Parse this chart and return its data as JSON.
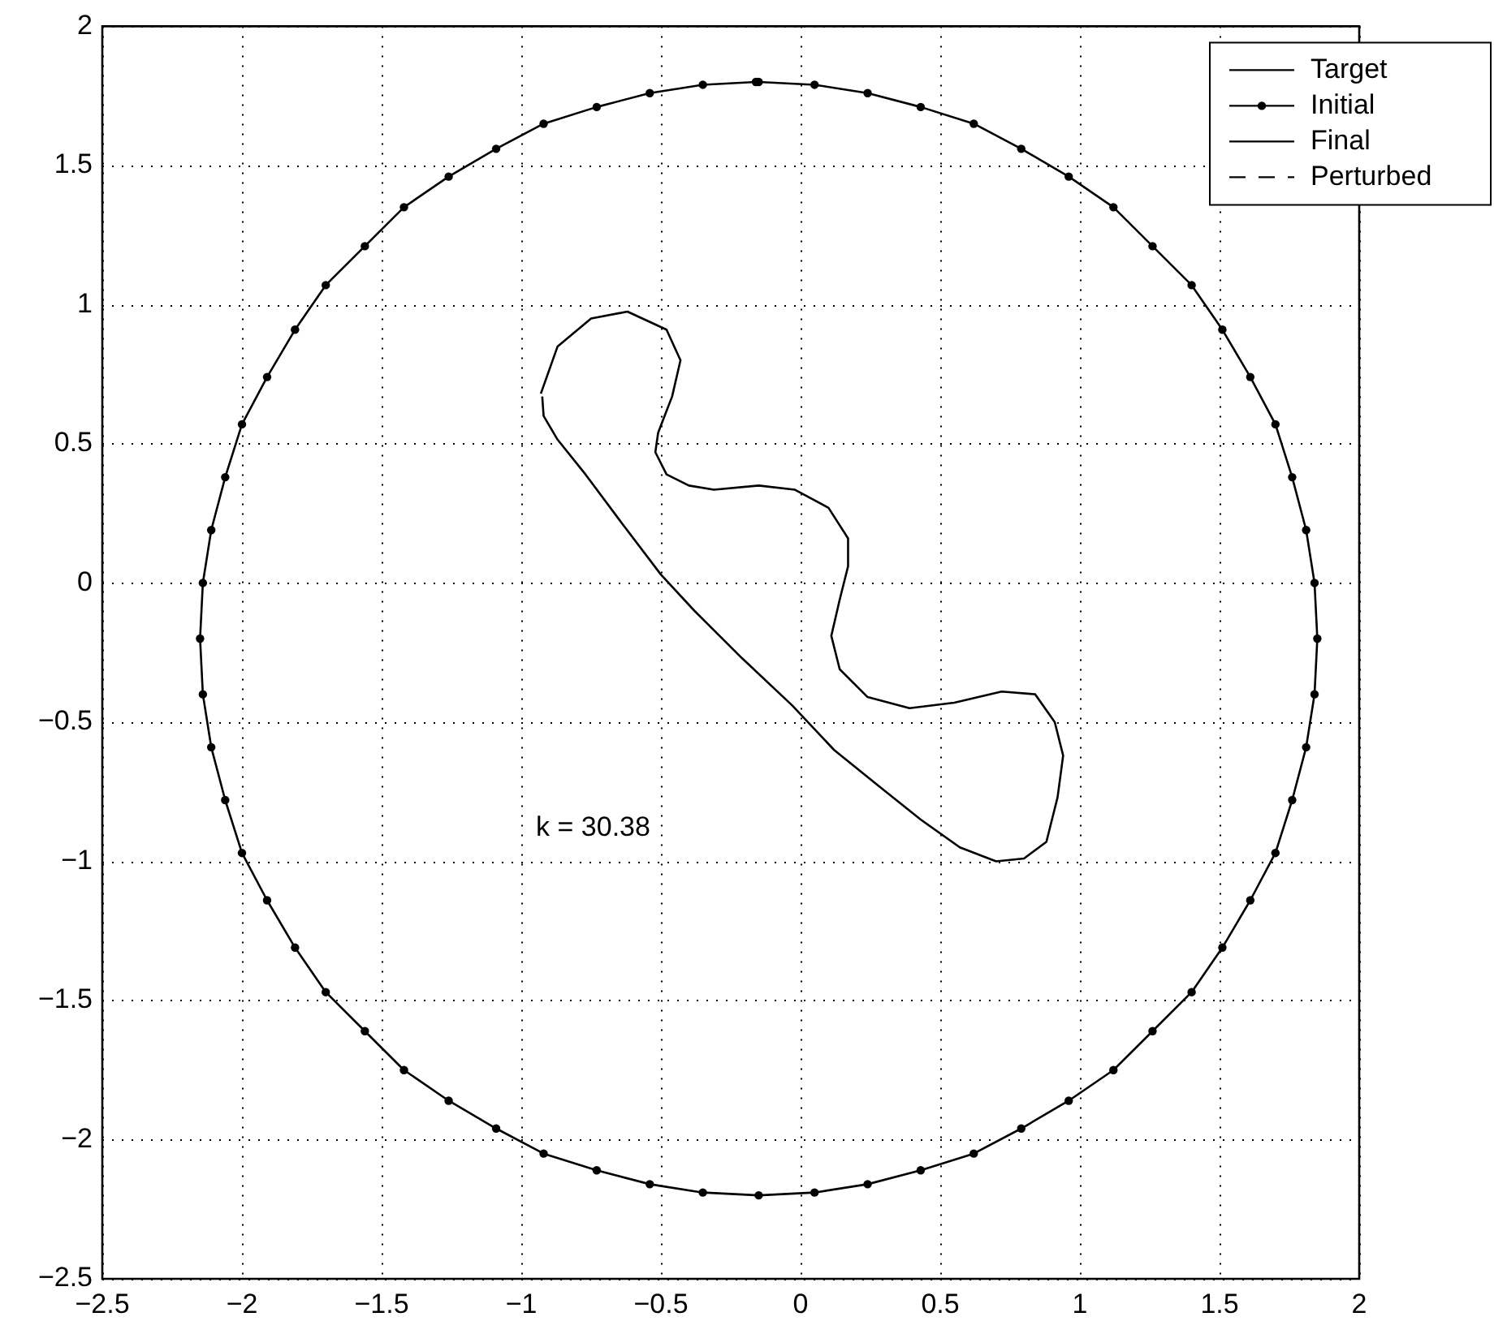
{
  "chart_data": {
    "type": "line",
    "xlim": [
      -2.5,
      2
    ],
    "ylim": [
      -2.5,
      2
    ],
    "xticks": [
      {
        "value": -2.5,
        "label": "−2.5"
      },
      {
        "value": -2,
        "label": "−2"
      },
      {
        "value": -1.5,
        "label": "−1.5"
      },
      {
        "value": -1,
        "label": "−1"
      },
      {
        "value": -0.5,
        "label": "−0.5"
      },
      0,
      0.5,
      1,
      1.5,
      2
    ],
    "yticks": [
      {
        "value": -2.5,
        "label": "−2.5"
      },
      {
        "value": -2,
        "label": "−2"
      },
      {
        "value": -1.5,
        "label": "−1.5"
      },
      {
        "value": -1,
        "label": "−1"
      },
      {
        "value": -0.5,
        "label": "−0.5"
      },
      0,
      0.5,
      1,
      1.5,
      2
    ],
    "grid": true,
    "legend": "top right",
    "annotations": [
      "k = 30.38"
    ],
    "series": [
      {
        "name": "Target",
        "color": "#000000",
        "line_style": "solid"
      },
      {
        "name": "Initial",
        "color": "#000000",
        "marker": "circle",
        "line_style": "solid",
        "x": [
          -0.15,
          0.05,
          0.24,
          0.43,
          0.62,
          0.79,
          0.96,
          1.12,
          1.26,
          1.4,
          1.51,
          1.61,
          1.7,
          1.76,
          1.81,
          1.84,
          1.85,
          1.84,
          1.81,
          1.76,
          1.7,
          1.61,
          1.51,
          1.4,
          1.26,
          1.12,
          0.96,
          0.79,
          0.62,
          0.43,
          0.24,
          0.05,
          -0.15,
          -0.35,
          -0.54,
          -0.73,
          -0.92,
          -1.09,
          -1.26,
          -1.42,
          -1.56,
          -1.7,
          -1.81,
          -1.91,
          -2.0,
          -2.06,
          -2.11,
          -2.14,
          -2.15,
          -2.14,
          -2.11,
          -2.06,
          -2.0,
          -1.91,
          -1.81,
          -1.7,
          -1.56,
          -1.42,
          -1.26,
          -1.09,
          -0.92,
          -0.73,
          -0.54,
          -0.35,
          -0.16
        ],
        "values": [
          1.8,
          1.79,
          1.76,
          1.71,
          1.65,
          1.56,
          1.46,
          1.35,
          1.21,
          1.07,
          0.91,
          0.74,
          0.57,
          0.38,
          0.19,
          0.0,
          -0.2,
          -0.4,
          -0.59,
          -0.78,
          -0.97,
          -1.14,
          -1.31,
          -1.47,
          -1.61,
          -1.75,
          -1.86,
          -1.96,
          -2.05,
          -2.11,
          -2.16,
          -2.19,
          -2.2,
          -2.19,
          -2.16,
          -2.11,
          -2.05,
          -1.96,
          -1.86,
          -1.75,
          -1.61,
          -1.47,
          -1.31,
          -1.14,
          -0.97,
          -0.78,
          -0.59,
          -0.4,
          -0.2,
          0.0,
          0.19,
          0.38,
          0.57,
          0.74,
          0.91,
          1.07,
          1.21,
          1.35,
          1.46,
          1.56,
          1.65,
          1.71,
          1.76,
          1.79,
          1.8
        ]
      },
      {
        "name": "Final",
        "color": "#000000",
        "line_style": "solid",
        "x": [
          -0.93,
          -0.87,
          -0.75,
          -0.62,
          -0.48,
          -0.43,
          -0.46,
          -0.51,
          -0.52,
          -0.48,
          -0.4,
          -0.31,
          -0.15,
          -0.02,
          0.1,
          0.17,
          0.17,
          0.14,
          0.11,
          0.14,
          0.24,
          0.39,
          0.55,
          0.72,
          0.84,
          0.91,
          0.94,
          0.92,
          0.88,
          0.8,
          0.7,
          0.57,
          0.43,
          0.28,
          0.12,
          -0.03,
          -0.21,
          -0.38,
          -0.5,
          -0.64,
          -0.77,
          -0.87,
          -0.92,
          -0.925
        ],
        "values": [
          0.68,
          0.85,
          0.95,
          0.975,
          0.91,
          0.8,
          0.67,
          0.54,
          0.47,
          0.39,
          0.35,
          0.335,
          0.35,
          0.335,
          0.27,
          0.16,
          0.06,
          -0.06,
          -0.19,
          -0.31,
          -0.41,
          -0.45,
          -0.43,
          -0.39,
          -0.4,
          -0.5,
          -0.62,
          -0.77,
          -0.93,
          -0.99,
          -1.0,
          -0.95,
          -0.85,
          -0.73,
          -0.6,
          -0.44,
          -0.27,
          -0.1,
          0.03,
          0.215,
          0.39,
          0.515,
          0.6,
          0.67
        ]
      },
      {
        "name": "Perturbed",
        "color": "#000000",
        "line_style": "dashed"
      }
    ]
  }
}
